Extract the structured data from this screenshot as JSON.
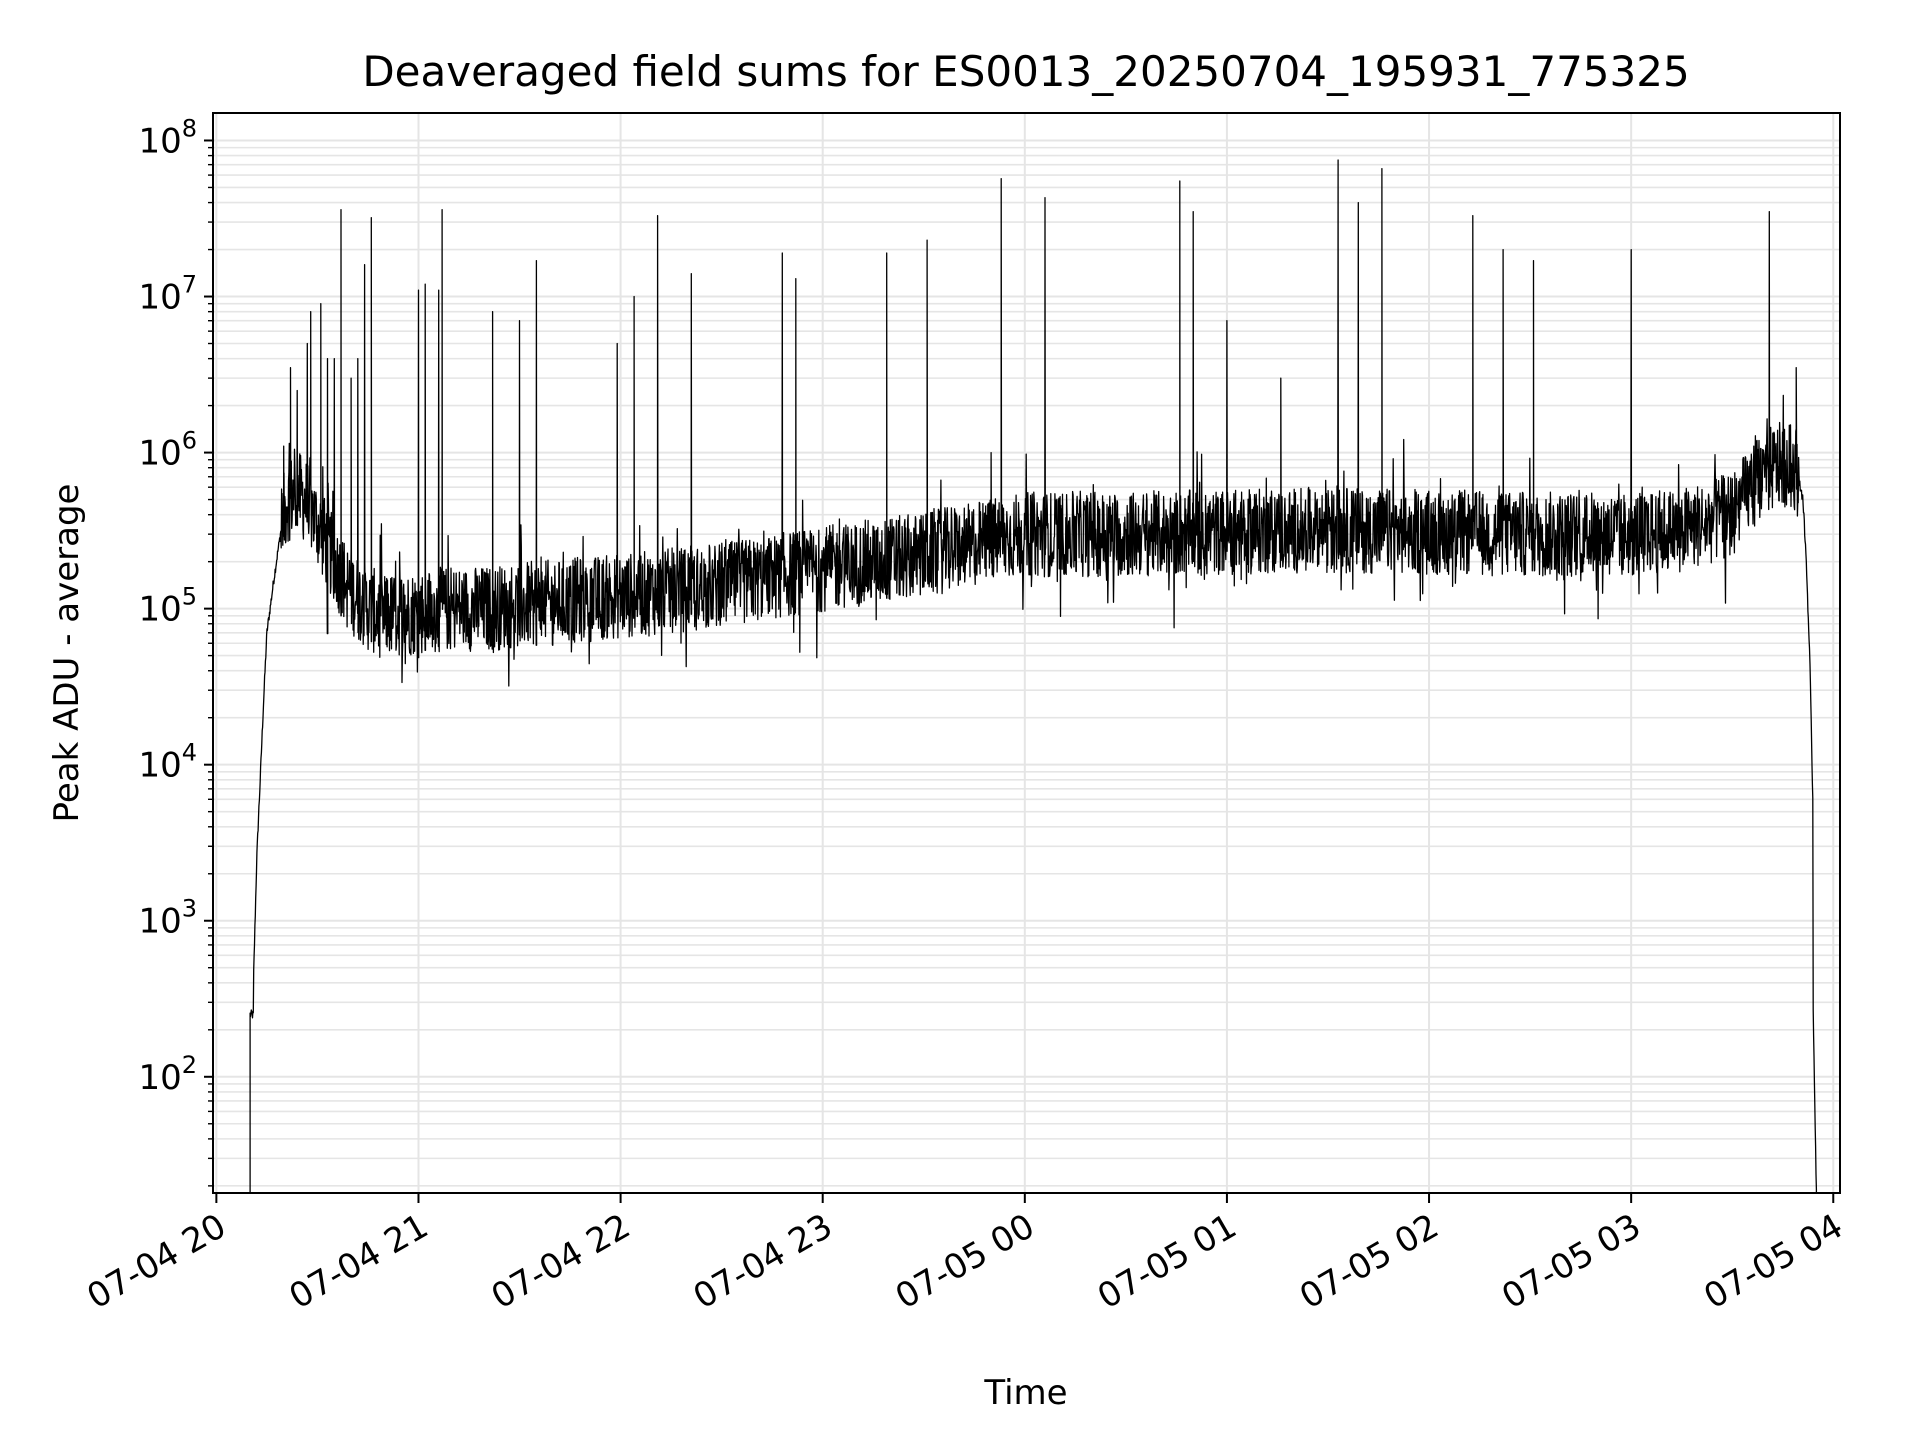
{
  "chart_data": {
    "type": "line",
    "title": "Deaveraged field sums for ES0013_20250704_195931_775325",
    "xlabel": "Time",
    "ylabel": "Peak ADU - average",
    "yscale": "log",
    "ylim": [
      18,
      150000000
    ],
    "xlim": [
      "07-04 19:59",
      "07-05 04:02"
    ],
    "grid": true,
    "colors": {
      "line": "#000000",
      "grid": "#e5e5e5",
      "axes": "#000000"
    },
    "x_ticks": [
      {
        "t": "07-04 20:00",
        "label": "07-04 20"
      },
      {
        "t": "07-04 21:00",
        "label": "07-04 21"
      },
      {
        "t": "07-04 22:00",
        "label": "07-04 22"
      },
      {
        "t": "07-04 23:00",
        "label": "07-04 23"
      },
      {
        "t": "07-05 00:00",
        "label": "07-05 00"
      },
      {
        "t": "07-05 01:00",
        "label": "07-05 01"
      },
      {
        "t": "07-05 02:00",
        "label": "07-05 02"
      },
      {
        "t": "07-05 03:00",
        "label": "07-05 03"
      },
      {
        "t": "07-05 04:00",
        "label": "07-05 04"
      }
    ],
    "y_ticks": [
      {
        "value": 100,
        "base": "10",
        "exp": "2"
      },
      {
        "value": 1000,
        "base": "10",
        "exp": "3"
      },
      {
        "value": 10000,
        "base": "10",
        "exp": "4"
      },
      {
        "value": 100000,
        "base": "10",
        "exp": "5"
      },
      {
        "value": 1000000,
        "base": "10",
        "exp": "6"
      },
      {
        "value": 10000000,
        "base": "10",
        "exp": "7"
      },
      {
        "value": 100000000,
        "base": "10",
        "exp": "8"
      }
    ],
    "series": [
      {
        "points": [
          [
            "07-04 20:10",
            18
          ],
          [
            "07-04 20:10",
            250
          ],
          [
            "07-04 20:11",
            250
          ],
          [
            "07-04 20:11",
            400
          ],
          [
            "07-04 20:12",
            2500
          ],
          [
            "07-04 20:13",
            8000
          ],
          [
            "07-04 20:14",
            25000
          ],
          [
            "07-04 20:15",
            70000
          ],
          [
            "07-04 20:17",
            150000
          ],
          [
            "07-04 20:19",
            300000
          ],
          [
            "07-04 20:21",
            500000
          ],
          [
            "07-04 20:24",
            550000
          ],
          [
            "07-04 20:27",
            480000
          ],
          [
            "07-04 20:30",
            350000
          ],
          [
            "07-04 20:33",
            250000
          ],
          [
            "07-04 20:36",
            180000
          ],
          [
            "07-04 20:40",
            130000
          ],
          [
            "07-04 20:45",
            100000
          ],
          [
            "07-04 20:50",
            90000
          ],
          [
            "07-04 21:00",
            95000
          ],
          [
            "07-04 21:10",
            100000
          ],
          [
            "07-04 21:20",
            100000
          ],
          [
            "07-04 21:30",
            105000
          ],
          [
            "07-04 21:40",
            110000
          ],
          [
            "07-04 21:50",
            115000
          ],
          [
            "07-04 22:00",
            120000
          ],
          [
            "07-04 22:15",
            130000
          ],
          [
            "07-04 22:30",
            140000
          ],
          [
            "07-04 22:45",
            160000
          ],
          [
            "07-04 23:00",
            180000
          ],
          [
            "07-04 23:15",
            200000
          ],
          [
            "07-04 23:30",
            220000
          ],
          [
            "07-04 23:45",
            260000
          ],
          [
            "07-05 00:00",
            300000
          ],
          [
            "07-05 00:30",
            300000
          ],
          [
            "07-05 01:00",
            310000
          ],
          [
            "07-05 01:30",
            320000
          ],
          [
            "07-05 02:00",
            310000
          ],
          [
            "07-05 02:30",
            300000
          ],
          [
            "07-05 03:00",
            300000
          ],
          [
            "07-05 03:15",
            320000
          ],
          [
            "07-05 03:30",
            400000
          ],
          [
            "07-05 03:38",
            700000
          ],
          [
            "07-05 03:45",
            850000
          ],
          [
            "07-05 03:49",
            800000
          ],
          [
            "07-05 03:51",
            500000
          ],
          [
            "07-05 03:52",
            200000
          ],
          [
            "07-05 03:53",
            50000
          ],
          [
            "07-05 03:54",
            5000
          ],
          [
            "07-05 03:54",
            300
          ],
          [
            "07-05 03:55",
            18
          ]
        ]
      }
    ],
    "spikes": [
      [
        "07-04 20:20",
        1100000
      ],
      [
        "07-04 20:22",
        3500000
      ],
      [
        "07-04 20:24",
        2500000
      ],
      [
        "07-04 20:27",
        5000000
      ],
      [
        "07-04 20:28",
        8000000
      ],
      [
        "07-04 20:31",
        9000000
      ],
      [
        "07-04 20:33",
        4000000
      ],
      [
        "07-04 20:35",
        4000000
      ],
      [
        "07-04 20:37",
        36000000
      ],
      [
        "07-04 20:40",
        3000000
      ],
      [
        "07-04 20:42",
        4000000
      ],
      [
        "07-04 20:44",
        16000000
      ],
      [
        "07-04 20:46",
        32000000
      ],
      [
        "07-04 21:00",
        11000000
      ],
      [
        "07-04 21:02",
        12000000
      ],
      [
        "07-04 21:06",
        11000000
      ],
      [
        "07-04 21:07",
        36000000
      ],
      [
        "07-04 21:22",
        8000000
      ],
      [
        "07-04 21:30",
        7000000
      ],
      [
        "07-04 21:35",
        17000000
      ],
      [
        "07-04 21:59",
        5000000
      ],
      [
        "07-04 22:04",
        10000000
      ],
      [
        "07-04 22:11",
        33000000
      ],
      [
        "07-04 22:21",
        14000000
      ],
      [
        "07-04 22:48",
        19000000
      ],
      [
        "07-04 22:52",
        13000000
      ],
      [
        "07-04 23:19",
        19000000
      ],
      [
        "07-04 23:31",
        23000000
      ],
      [
        "07-04 23:50",
        1000000
      ],
      [
        "07-04 23:53",
        57000000
      ],
      [
        "07-05 00:06",
        43000000
      ],
      [
        "07-05 00:46",
        55000000
      ],
      [
        "07-05 00:50",
        35000000
      ],
      [
        "07-05 01:00",
        7000000
      ],
      [
        "07-05 01:16",
        3000000
      ],
      [
        "07-05 01:33",
        75000000
      ],
      [
        "07-05 01:39",
        40000000
      ],
      [
        "07-05 01:46",
        66000000
      ],
      [
        "07-05 02:13",
        33000000
      ],
      [
        "07-05 02:22",
        20000000
      ],
      [
        "07-05 02:31",
        17000000
      ],
      [
        "07-05 03:00",
        20000000
      ],
      [
        "07-05 03:41",
        35000000
      ],
      [
        "07-05 03:49",
        3500000
      ]
    ]
  }
}
